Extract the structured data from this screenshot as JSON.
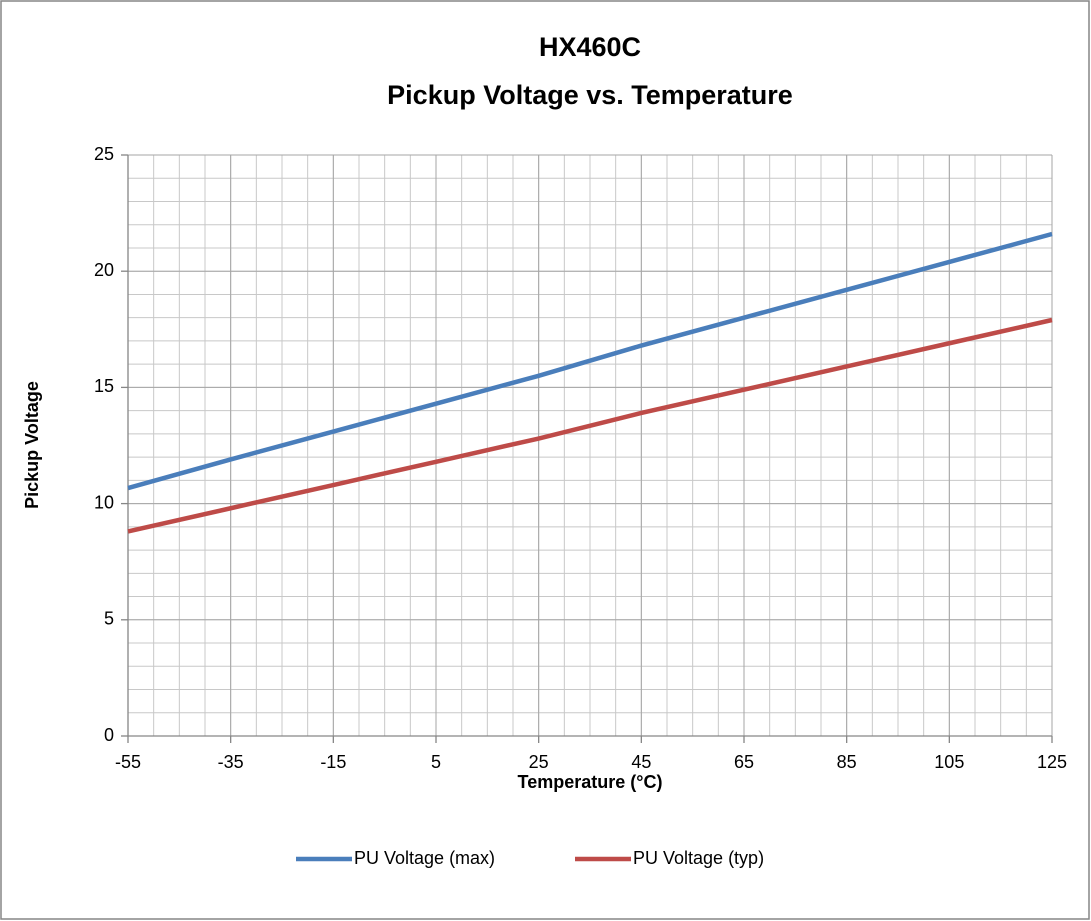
{
  "chart_data": {
    "type": "line",
    "title": [
      "HX460C",
      "Pickup Voltage vs. Temperature"
    ],
    "xlabel": "Temperature (°C)",
    "ylabel": "Pickup Voltage",
    "x": [
      -55,
      -35,
      -15,
      5,
      25,
      45,
      65,
      85,
      105,
      125
    ],
    "series": [
      {
        "name": "PU Voltage (max)",
        "color": "#4a7ebb",
        "values": [
          10.67,
          11.9,
          13.1,
          14.3,
          15.5,
          16.8,
          18.0,
          19.2,
          20.4,
          21.6
        ]
      },
      {
        "name": "PU Voltage (typ)",
        "color": "#be4b48",
        "values": [
          8.8,
          9.8,
          10.8,
          11.8,
          12.8,
          13.9,
          14.9,
          15.9,
          16.9,
          17.9
        ]
      }
    ],
    "xlim": [
      -55,
      125
    ],
    "xticks": [
      -55,
      -35,
      -15,
      5,
      25,
      45,
      65,
      85,
      105,
      125
    ],
    "ylim": [
      0,
      25
    ],
    "yticks": [
      0,
      5,
      10,
      15,
      20,
      25
    ],
    "grid": true,
    "minor_xstep": 5,
    "minor_ystep": 1,
    "legend": "bottom"
  }
}
